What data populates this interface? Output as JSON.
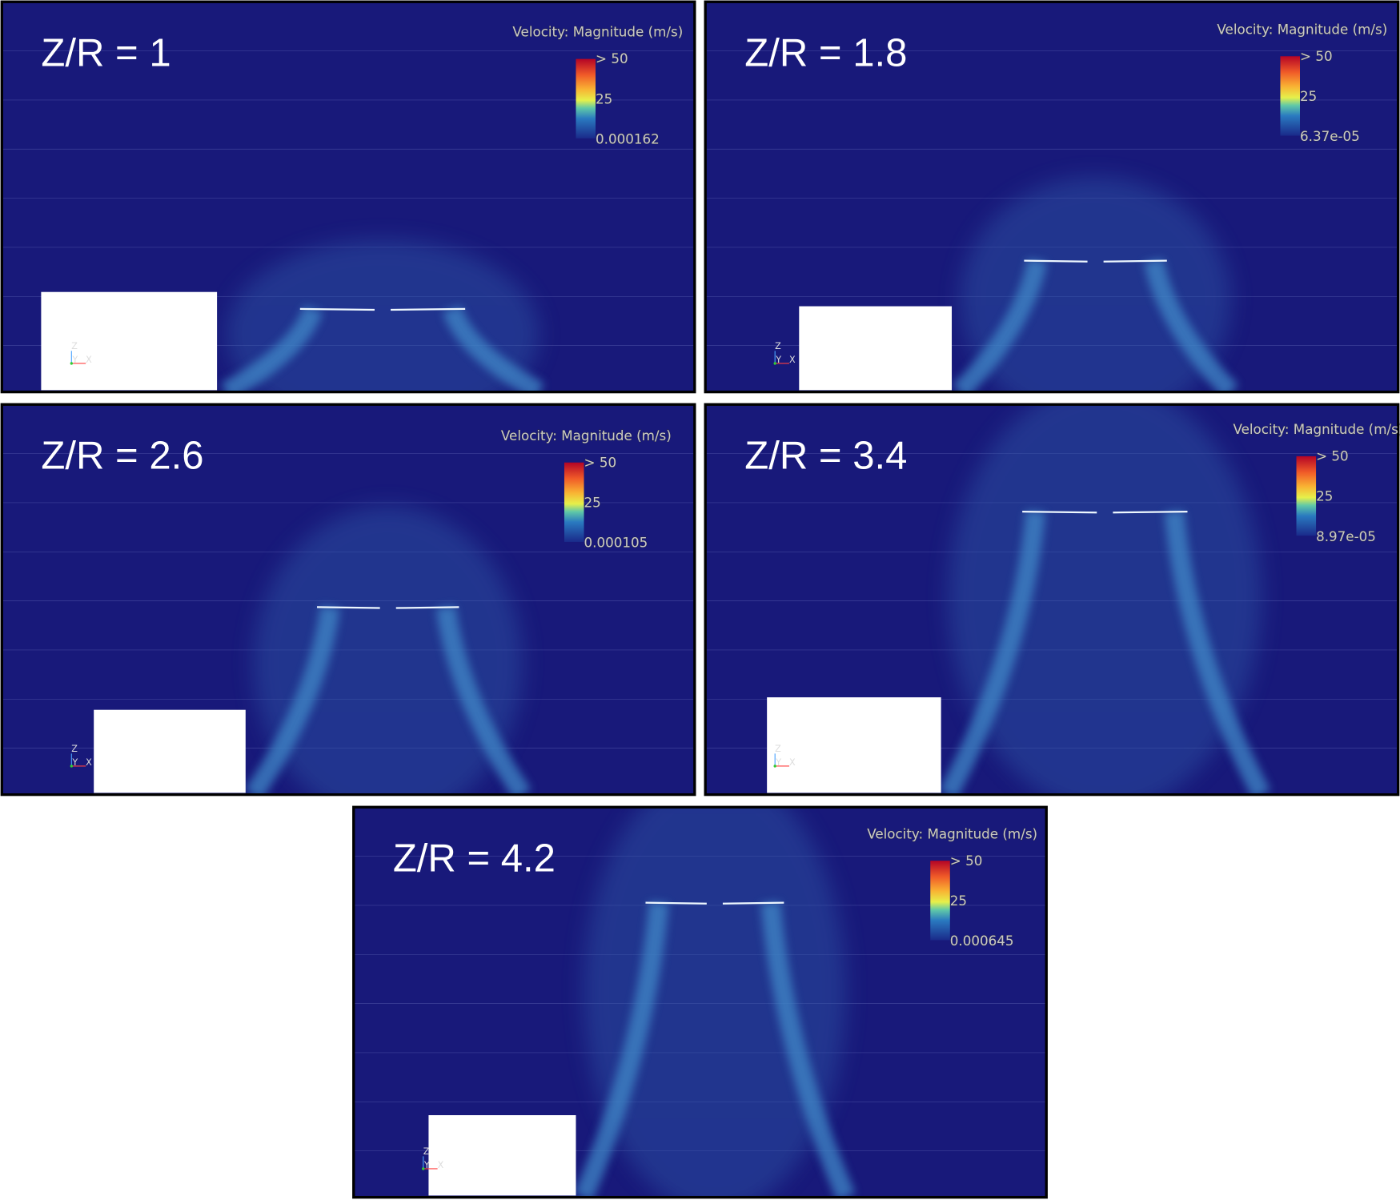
{
  "panels": [
    {
      "label": "Z/R = 1",
      "legend": {
        "title": "Velocity: Magnitude (m/s)",
        "max": "> 50",
        "mid": "25",
        "min": "0.000162"
      },
      "triad": {
        "z": "Z",
        "y": "Y",
        "x": "X"
      }
    },
    {
      "label": "Z/R = 1.8",
      "legend": {
        "title": "Velocity: Magnitude (m/s)",
        "max": "> 50",
        "mid": "25",
        "min": "6.37e-05"
      },
      "triad": {
        "z": "Z",
        "y": "Y",
        "x": "X"
      }
    },
    {
      "label": "Z/R = 2.6",
      "legend": {
        "title": "Velocity: Magnitude (m/s)",
        "max": "> 50",
        "mid": "25",
        "min": "0.000105"
      },
      "triad": {
        "z": "Z",
        "y": "Y",
        "x": "X"
      }
    },
    {
      "label": "Z/R = 3.4",
      "legend": {
        "title": "Velocity: Magnitude (m/s)",
        "max": "> 50",
        "mid": "25",
        "min": "8.97e-05"
      },
      "triad": {
        "z": "Z",
        "y": "Y",
        "x": "X"
      }
    },
    {
      "label": "Z/R = 4.2",
      "legend": {
        "title": "Velocity: Magnitude (m/s)",
        "max": "> 50",
        "mid": "25",
        "min": "0.000645"
      },
      "triad": {
        "z": "Z",
        "y": "Y",
        "x": "X"
      }
    }
  ]
}
